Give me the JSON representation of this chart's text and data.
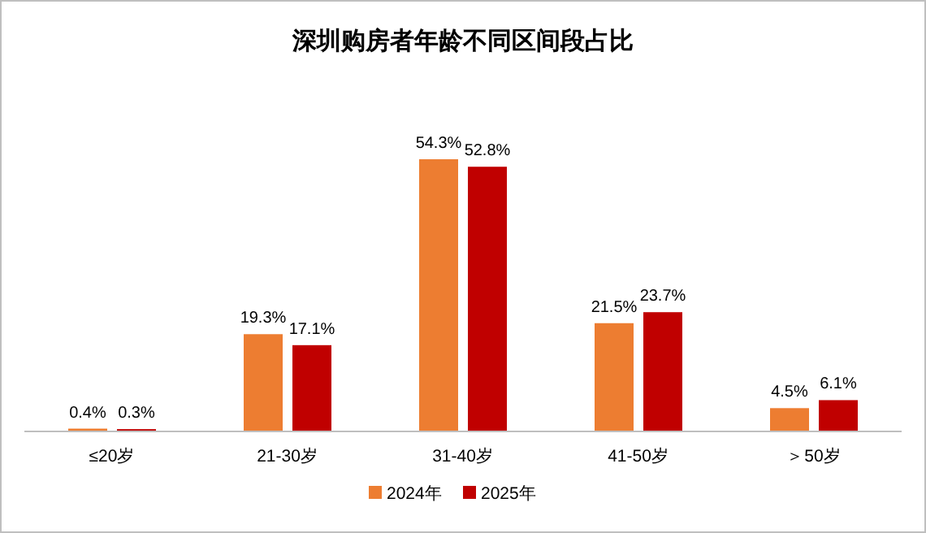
{
  "chart_data": {
    "type": "bar",
    "title": "深圳购房者年龄不同区间段占比",
    "categories": [
      "≤20岁",
      "21-30岁",
      "31-40岁",
      "41-50岁",
      "＞50岁"
    ],
    "series": [
      {
        "name": "2024年",
        "color": "#ed7d31",
        "values": [
          0.4,
          19.3,
          54.3,
          21.5,
          4.5
        ],
        "value_labels": [
          "0.4%",
          "19.3%",
          "54.3%",
          "21.5%",
          "4.5%"
        ]
      },
      {
        "name": "2025年",
        "color": "#c00000",
        "values": [
          0.3,
          17.1,
          52.8,
          23.7,
          6.1
        ],
        "value_labels": [
          "0.3%",
          "17.1%",
          "52.8%",
          "23.7%",
          "6.1%"
        ]
      }
    ],
    "legend": "bottom"
  }
}
